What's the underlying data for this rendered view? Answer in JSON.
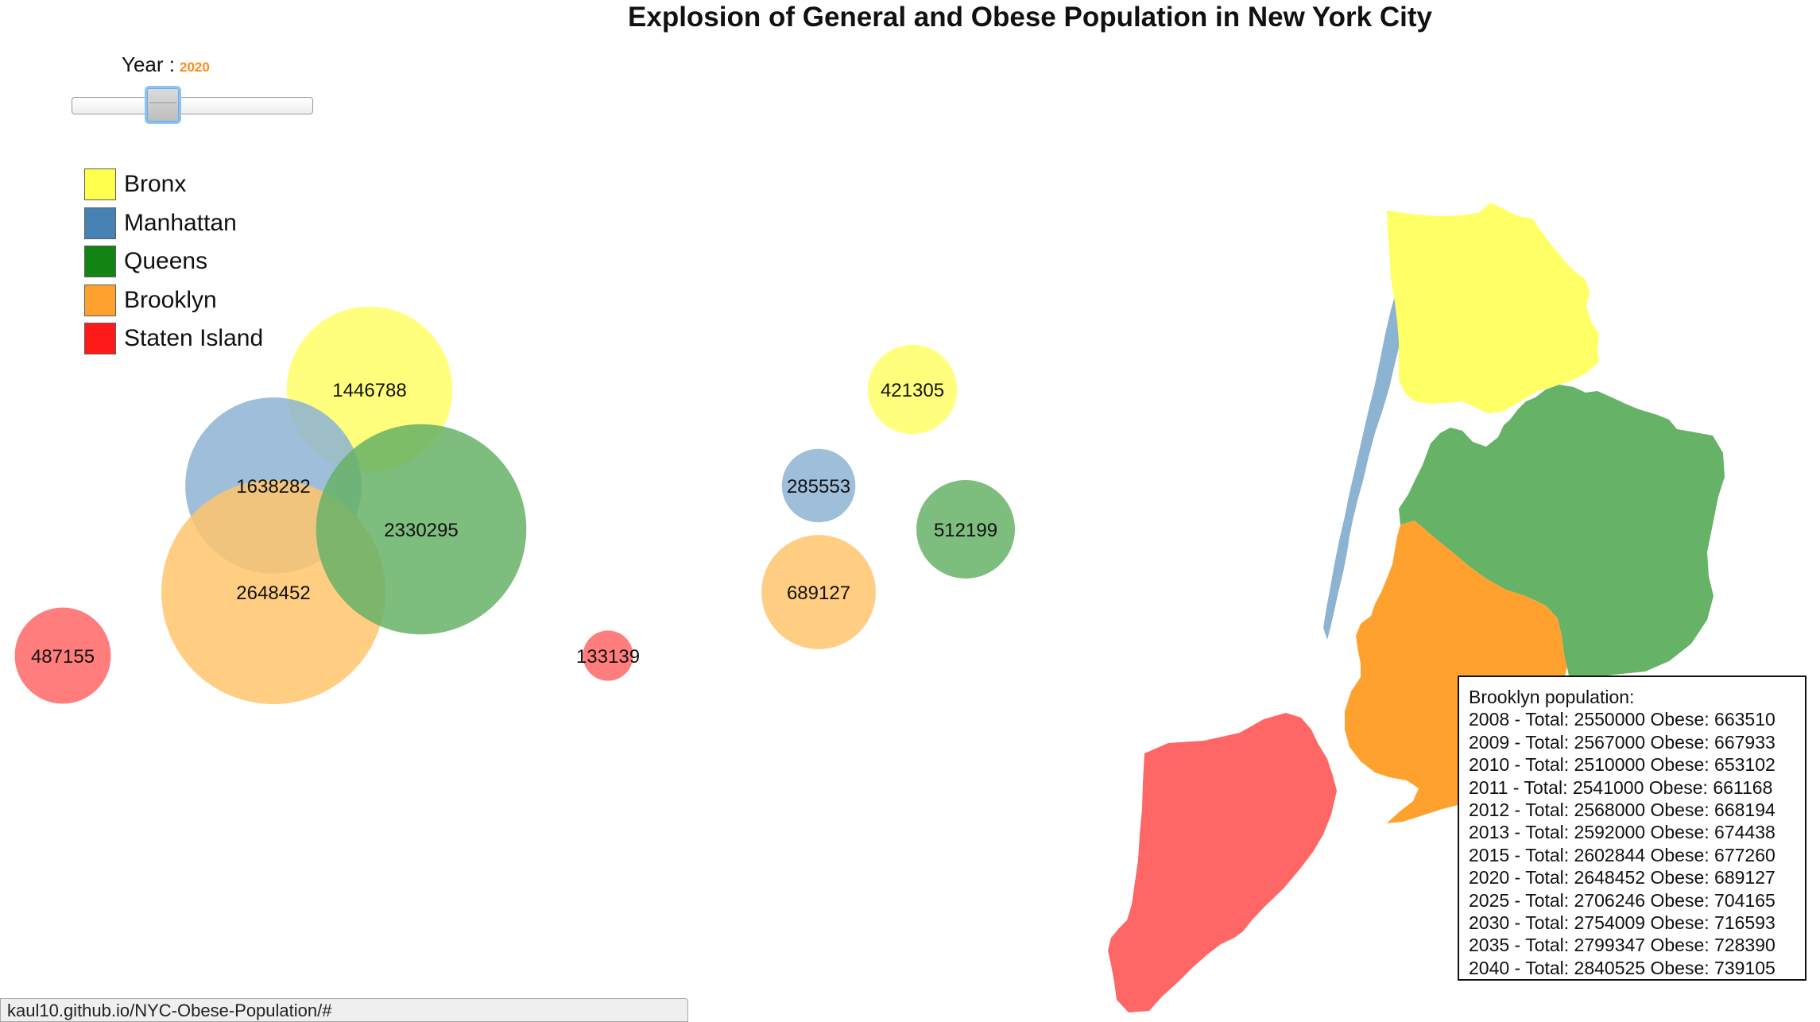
{
  "title": "Explosion of General and Obese Population in New York City",
  "year_control": {
    "label": "Year :",
    "value": "2020",
    "slider_position_fraction": 0.38
  },
  "legend": [
    {
      "label": "Bronx",
      "color": "#ffff4d"
    },
    {
      "label": "Manhattan",
      "color": "#4682b4"
    },
    {
      "label": "Queens",
      "color": "#138413"
    },
    {
      "label": "Brooklyn",
      "color": "#ffa12f"
    },
    {
      "label": "Staten Island",
      "color": "#ff1a1a"
    }
  ],
  "tooltip": {
    "heading": "Brooklyn population:",
    "lines": [
      "2008 - Total: 2550000 Obese: 663510",
      "2009 - Total: 2567000 Obese: 667933",
      "2010 - Total: 2510000 Obese: 653102",
      "2011 - Total: 2541000 Obese: 661168",
      "2012 - Total: 2568000 Obese: 668194",
      "2013 - Total: 2592000 Obese: 674438",
      "2015 - Total: 2602844 Obese: 677260",
      "2020 - Total: 2648452 Obese: 689127",
      "2025 - Total: 2706246 Obese: 704165",
      "2030 - Total: 2754009 Obese: 716593",
      "2035 - Total: 2799347 Obese: 728390",
      "2040 - Total: 2840525 Obese: 739105"
    ]
  },
  "status_bar": {
    "url": "kaul10.github.io/NYC-Obese-Population/#"
  },
  "chart_data": {
    "type": "bubble",
    "year": "2020",
    "groups": [
      {
        "group": "total",
        "points": [
          {
            "borough": "Bronx",
            "value": 1446788,
            "color": "#ffff66"
          },
          {
            "borough": "Manhattan",
            "value": 1638282,
            "color": "#8db3d3"
          },
          {
            "borough": "Queens",
            "value": 2330295,
            "color": "#66b266"
          },
          {
            "borough": "Brooklyn",
            "value": 2648452,
            "color": "#ffc56c"
          },
          {
            "borough": "Staten Island",
            "value": 487155,
            "color": "#ff6666"
          }
        ]
      },
      {
        "group": "obese",
        "points": [
          {
            "borough": "Bronx",
            "value": 421305,
            "color": "#ffff66"
          },
          {
            "borough": "Manhattan",
            "value": 285553,
            "color": "#8db3d3"
          },
          {
            "borough": "Queens",
            "value": 512199,
            "color": "#66b266"
          },
          {
            "borough": "Brooklyn",
            "value": 689127,
            "color": "#ffc56c"
          },
          {
            "borough": "Staten Island",
            "value": 133139,
            "color": "#ff6666"
          }
        ]
      }
    ],
    "map_colors": {
      "Bronx": "#ffff66",
      "Manhattan": "#8db3d3",
      "Queens": "#66b266",
      "Brooklyn": "#ffa12f",
      "Staten Island": "#ff6666"
    }
  }
}
